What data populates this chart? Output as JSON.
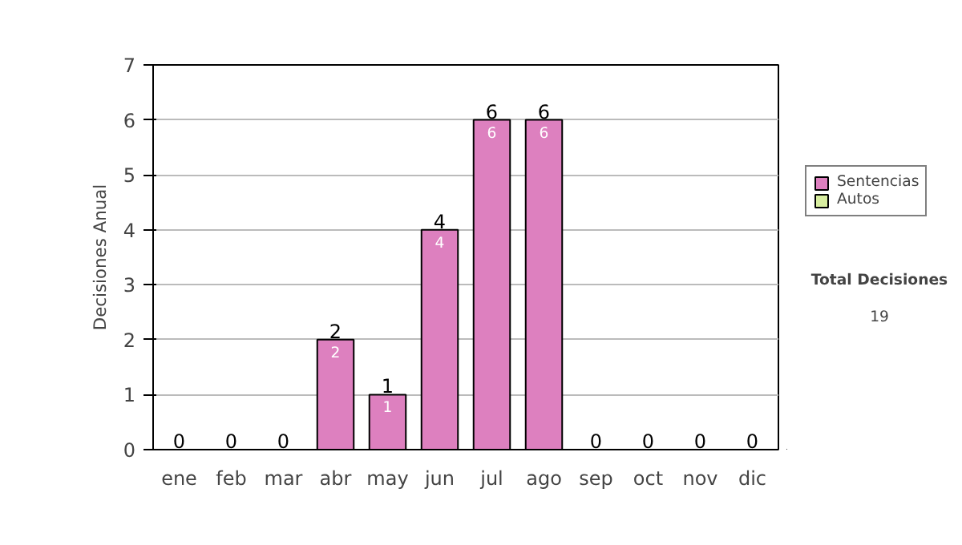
{
  "chart_data": {
    "type": "bar",
    "stacked": true,
    "ylabel": "Decisiones Anual",
    "categories": [
      "ene",
      "feb",
      "mar",
      "abr",
      "may",
      "jun",
      "jul",
      "ago",
      "sep",
      "oct",
      "nov",
      "dic"
    ],
    "series": [
      {
        "name": "Sentencias",
        "color": "#dd80bf",
        "values": [
          0,
          0,
          0,
          2,
          1,
          4,
          6,
          6,
          0,
          0,
          0,
          0
        ],
        "value_labels": [
          null,
          null,
          null,
          "2",
          "1",
          "4",
          "6",
          "6",
          null,
          null,
          null,
          null
        ]
      },
      {
        "name": "Autos",
        "color": "#d8eea0",
        "values": [
          0,
          0,
          0,
          0,
          0,
          0,
          0,
          0,
          0,
          0,
          0,
          0
        ]
      }
    ],
    "totals": [
      "0",
      "0",
      "0",
      "2",
      "1",
      "4",
      "6",
      "6",
      "0",
      "0",
      "0",
      "0"
    ],
    "ylim": [
      0,
      7
    ],
    "yticks": [
      0,
      1,
      2,
      3,
      4,
      5,
      6,
      7
    ],
    "grid": "y",
    "legend": "right",
    "annotations": [
      "Total Decisiones",
      "19"
    ]
  }
}
